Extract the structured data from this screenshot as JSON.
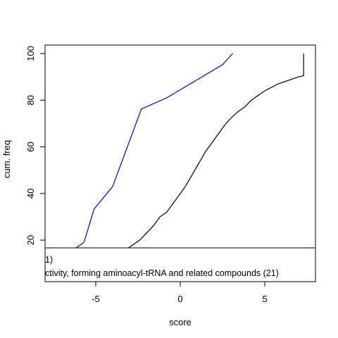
{
  "chart_data": {
    "type": "line",
    "xlabel": "score",
    "ylabel": "cum. freq",
    "xlim": [
      -8.0,
      8.0
    ],
    "ylim": [
      16.0,
      103.0
    ],
    "x_ticks": [
      -5,
      0,
      5
    ],
    "y_ticks": [
      20,
      40,
      60,
      80,
      100
    ],
    "grid": false,
    "legend_placement": "bottom",
    "legend_entries": [
      "1)",
      "ctivity, forming aminoacyl-tRNA and related compounds (21)"
    ],
    "series": [
      {
        "color": "#0000ff",
        "points": [
          [
            -6.3,
            16
          ],
          [
            -5.7,
            19
          ],
          [
            -5.1,
            33.3
          ],
          [
            -4.0,
            43
          ],
          [
            -2.3,
            76.2
          ],
          [
            -0.8,
            81
          ],
          [
            2.5,
            95.2
          ],
          [
            3.1,
            100
          ]
        ]
      },
      {
        "color": "#000000",
        "points": [
          [
            -3.2,
            16
          ],
          [
            -2.8,
            18
          ],
          [
            -2.4,
            20
          ],
          [
            -2.0,
            23
          ],
          [
            -1.6,
            26
          ],
          [
            -1.2,
            30
          ],
          [
            -0.8,
            32
          ],
          [
            -0.5,
            35
          ],
          [
            -0.1,
            39
          ],
          [
            0.3,
            43
          ],
          [
            0.7,
            48
          ],
          [
            1.1,
            53
          ],
          [
            1.5,
            58
          ],
          [
            1.9,
            62
          ],
          [
            2.3,
            66
          ],
          [
            2.7,
            70
          ],
          [
            3.1,
            73
          ],
          [
            3.4,
            75
          ],
          [
            3.8,
            77
          ],
          [
            4.2,
            80
          ],
          [
            4.6,
            82
          ],
          [
            5.0,
            84
          ],
          [
            5.4,
            85.5
          ],
          [
            5.8,
            87
          ],
          [
            6.2,
            88
          ],
          [
            6.6,
            89
          ],
          [
            7.0,
            90
          ],
          [
            7.3,
            90.5
          ],
          [
            7.3,
            100
          ]
        ]
      }
    ]
  }
}
